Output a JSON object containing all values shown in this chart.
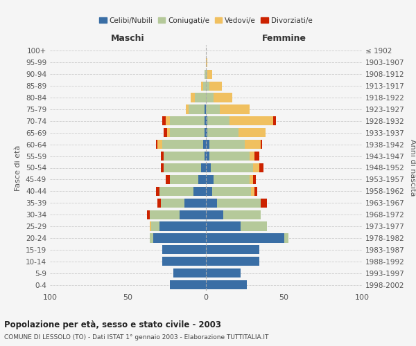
{
  "age_groups": [
    "0-4",
    "5-9",
    "10-14",
    "15-19",
    "20-24",
    "25-29",
    "30-34",
    "35-39",
    "40-44",
    "45-49",
    "50-54",
    "55-59",
    "60-64",
    "65-69",
    "70-74",
    "75-79",
    "80-84",
    "85-89",
    "90-94",
    "95-99",
    "100+"
  ],
  "birth_years": [
    "1998-2002",
    "1993-1997",
    "1988-1992",
    "1983-1987",
    "1978-1982",
    "1973-1977",
    "1968-1972",
    "1963-1967",
    "1958-1962",
    "1953-1957",
    "1948-1952",
    "1943-1947",
    "1938-1942",
    "1933-1937",
    "1928-1932",
    "1923-1927",
    "1918-1922",
    "1913-1917",
    "1908-1912",
    "1903-1907",
    "≤ 1902"
  ],
  "maschi": {
    "celibi": [
      23,
      21,
      28,
      28,
      34,
      30,
      17,
      14,
      8,
      5,
      3,
      1,
      2,
      1,
      1,
      1,
      0,
      0,
      0,
      0,
      0
    ],
    "coniugati": [
      0,
      0,
      0,
      0,
      2,
      5,
      19,
      15,
      22,
      18,
      24,
      26,
      26,
      22,
      22,
      10,
      7,
      2,
      1,
      0,
      0
    ],
    "vedovi": [
      0,
      0,
      0,
      0,
      0,
      1,
      0,
      0,
      0,
      0,
      0,
      0,
      3,
      2,
      3,
      2,
      3,
      1,
      0,
      0,
      0
    ],
    "divorziati": [
      0,
      0,
      0,
      0,
      0,
      0,
      2,
      2,
      2,
      3,
      2,
      2,
      1,
      2,
      2,
      0,
      0,
      0,
      0,
      0,
      0
    ]
  },
  "femmine": {
    "nubili": [
      26,
      22,
      34,
      34,
      50,
      22,
      11,
      7,
      4,
      5,
      3,
      2,
      2,
      1,
      1,
      0,
      0,
      0,
      0,
      0,
      0
    ],
    "coniugate": [
      0,
      0,
      0,
      0,
      3,
      17,
      24,
      28,
      25,
      23,
      27,
      26,
      23,
      20,
      14,
      9,
      5,
      2,
      1,
      0,
      0
    ],
    "vedove": [
      0,
      0,
      0,
      0,
      0,
      0,
      0,
      0,
      2,
      2,
      4,
      3,
      10,
      17,
      28,
      19,
      12,
      8,
      3,
      1,
      0
    ],
    "divorziate": [
      0,
      0,
      0,
      0,
      0,
      0,
      0,
      4,
      2,
      2,
      3,
      3,
      1,
      0,
      2,
      0,
      0,
      0,
      0,
      0,
      0
    ]
  },
  "colors": {
    "celibi": "#3a6ea5",
    "coniugati": "#b5c99a",
    "vedovi": "#f0c060",
    "divorziati": "#cc2200"
  },
  "xlim": 100,
  "title": "Popolazione per età, sesso e stato civile - 2003",
  "subtitle": "COMUNE DI LESSOLO (TO) - Dati ISTAT 1° gennaio 2003 - Elaborazione TUTTITALIA.IT",
  "ylabel_left": "Fasce di età",
  "ylabel_right": "Anni di nascita",
  "xlabel_left": "Maschi",
  "xlabel_right": "Femmine",
  "background_color": "#f5f5f5"
}
